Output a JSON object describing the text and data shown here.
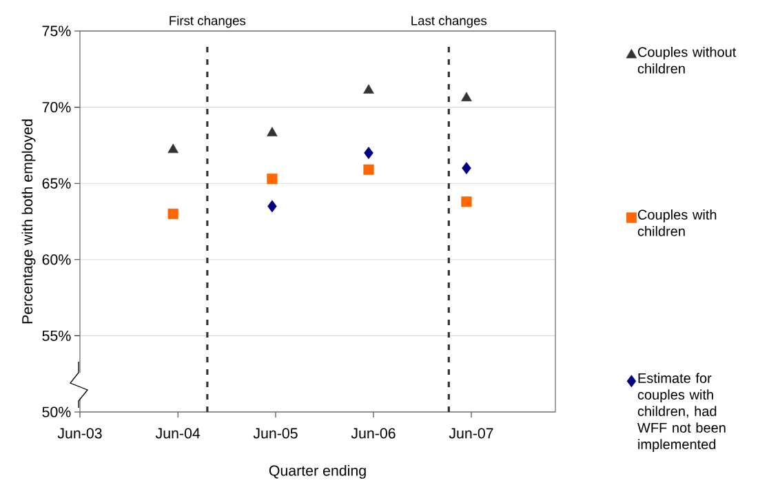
{
  "chart_data": {
    "type": "scatter",
    "xlabel": "Quarter ending",
    "ylabel": "Percentage with both employed",
    "x": [
      "2004-06-12",
      "2005-06-17",
      "2006-06-12",
      "2007-06-12"
    ],
    "series": [
      {
        "name": "Couples without children",
        "color": "#333333",
        "marker": "triangle",
        "values": [
          67.2,
          68.3,
          71.1,
          70.6
        ]
      },
      {
        "name": "Couples with children",
        "color": "#ff6600",
        "marker": "square",
        "values": [
          63.0,
          65.3,
          65.9,
          63.8
        ]
      },
      {
        "name": "Estimate for couples with children, had WFF not been implemented",
        "color": "#000080",
        "marker": "diamond",
        "values": [
          null,
          63.5,
          67.0,
          66.0
        ]
      }
    ],
    "xlim": [
      "2003-06-30",
      "2008-05-09"
    ],
    "xticks": [
      {
        "value": "2003-06-30",
        "label": "Jun-03"
      },
      {
        "value": "2004-06-30",
        "label": "Jun-04"
      },
      {
        "value": "2005-06-30",
        "label": "Jun-05"
      },
      {
        "value": "2006-06-30",
        "label": "Jun-06"
      },
      {
        "value": "2007-06-30",
        "label": "Jun-07"
      }
    ],
    "ylim": [
      50,
      75
    ],
    "yticks": [
      {
        "value": 50,
        "label": "50%"
      },
      {
        "value": 55,
        "label": "55%"
      },
      {
        "value": 60,
        "label": "60%"
      },
      {
        "value": 65,
        "label": "65%"
      },
      {
        "value": 70,
        "label": "70%"
      },
      {
        "value": 75,
        "label": "75%"
      }
    ],
    "ref_lines": [
      {
        "axis": "x",
        "value": "2004-10-18",
        "label": "First changes",
        "color": "#333333",
        "line_style": "dashed"
      },
      {
        "axis": "x",
        "value": "2007-04-07",
        "label": "Last changes",
        "color": "#333333",
        "line_style": "dashed"
      }
    ],
    "grid": "y",
    "legend": "right"
  }
}
